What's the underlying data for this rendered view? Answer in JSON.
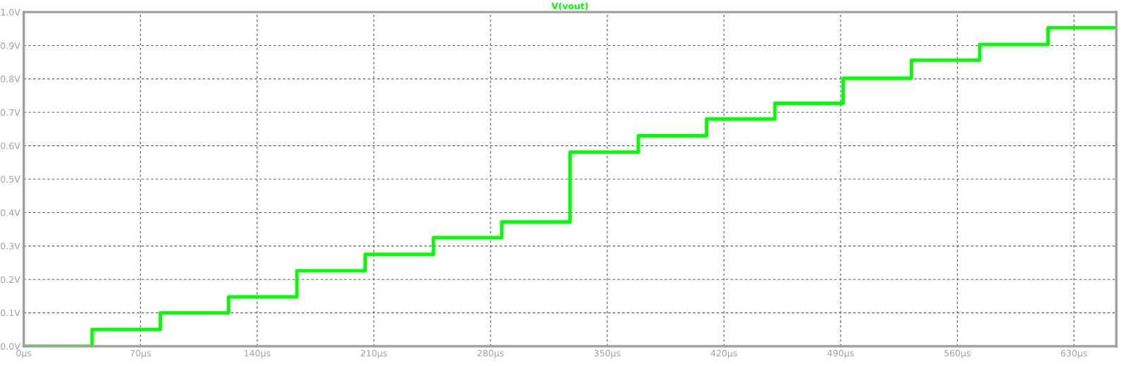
{
  "chart_data": {
    "type": "step",
    "title": "V(vout)",
    "x": [
      0,
      40.96,
      81.92,
      122.88,
      163.84,
      204.8,
      245.76,
      286.72,
      327.68,
      368.64,
      409.6,
      450.56,
      491.52,
      532.48,
      573.44,
      614.4,
      655.36
    ],
    "series": [
      {
        "color": "#00ff00",
        "values": [
          0,
          0.05,
          0.1,
          0.148,
          0.226,
          0.275,
          0.325,
          0.372,
          0.581,
          0.63,
          0.68,
          0.727,
          0.802,
          0.856,
          0.903,
          0.953,
          0.953
        ]
      }
    ],
    "xlim": [
      0,
      655.36
    ],
    "xticks": [
      {
        "value": 0,
        "label": "0µs"
      },
      {
        "value": 70,
        "label": "70µs"
      },
      {
        "value": 140,
        "label": "140µs"
      },
      {
        "value": 210,
        "label": "210µs"
      },
      {
        "value": 280,
        "label": "280µs"
      },
      {
        "value": 350,
        "label": "350µs"
      },
      {
        "value": 420,
        "label": "420µs"
      },
      {
        "value": 490,
        "label": "490µs"
      },
      {
        "value": 560,
        "label": "560µs"
      },
      {
        "value": 630,
        "label": "630µs"
      }
    ],
    "ylim": [
      0,
      1.0
    ],
    "yticks": [
      {
        "value": 0,
        "label": "0.0V"
      },
      {
        "value": 0.1,
        "label": "0.1V"
      },
      {
        "value": 0.2,
        "label": "0.2V"
      },
      {
        "value": 0.3,
        "label": "0.3V"
      },
      {
        "value": 0.4,
        "label": "0.4V"
      },
      {
        "value": 0.5,
        "label": "0.5V"
      },
      {
        "value": 0.6,
        "label": "0.6V"
      },
      {
        "value": 0.7,
        "label": "0.7V"
      },
      {
        "value": 0.8,
        "label": "0.8V"
      },
      {
        "value": 0.9,
        "label": "0.9V"
      },
      {
        "value": 1.0,
        "label": "1.0V"
      }
    ],
    "grid": true,
    "line_style": "solid",
    "marker": "none"
  }
}
